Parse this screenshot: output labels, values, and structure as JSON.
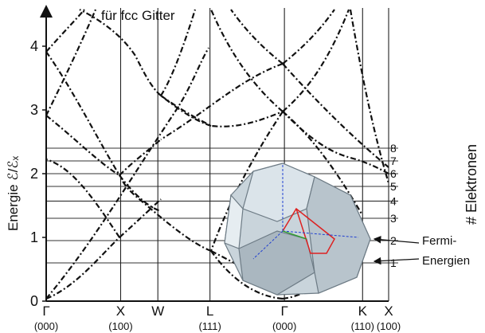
{
  "title": "für fcc Gitter",
  "y_axis_label": "Energie ℰ/ℰₓ",
  "right_axis_label": "# Elektronen",
  "fermi_label_line1": "Fermi-",
  "fermi_label_line2": "Energien",
  "chart_data": {
    "type": "line",
    "y_ticks": [
      "0",
      "1",
      "2",
      "3",
      "4"
    ],
    "ylim": [
      0,
      4.6
    ],
    "k_points": [
      {
        "label": "Γ",
        "index": "(000)",
        "pos": 0
      },
      {
        "label": "X",
        "index": "(100)",
        "pos": 1
      },
      {
        "label": "W",
        "index": "",
        "pos": 1.5
      },
      {
        "label": "L",
        "index": "(111)",
        "pos": 2.2
      },
      {
        "label": "Γ",
        "index": "(000)",
        "pos": 3.2
      },
      {
        "label": "K",
        "index": "(110)",
        "pos": 4.25
      },
      {
        "label": "X",
        "index": "(100)",
        "pos": 4.6
      }
    ],
    "electron_levels": [
      {
        "n": "1",
        "energy": 0.6
      },
      {
        "n": "2",
        "energy": 0.95
      },
      {
        "n": "3",
        "energy": 1.3
      },
      {
        "n": "4",
        "energy": 1.57
      },
      {
        "n": "5",
        "energy": 1.8
      },
      {
        "n": "6",
        "energy": 2.0
      },
      {
        "n": "7",
        "energy": 2.2
      },
      {
        "n": "8",
        "energy": 2.4
      }
    ],
    "fermi_arrow_levels": [
      0.95,
      0.6
    ]
  }
}
